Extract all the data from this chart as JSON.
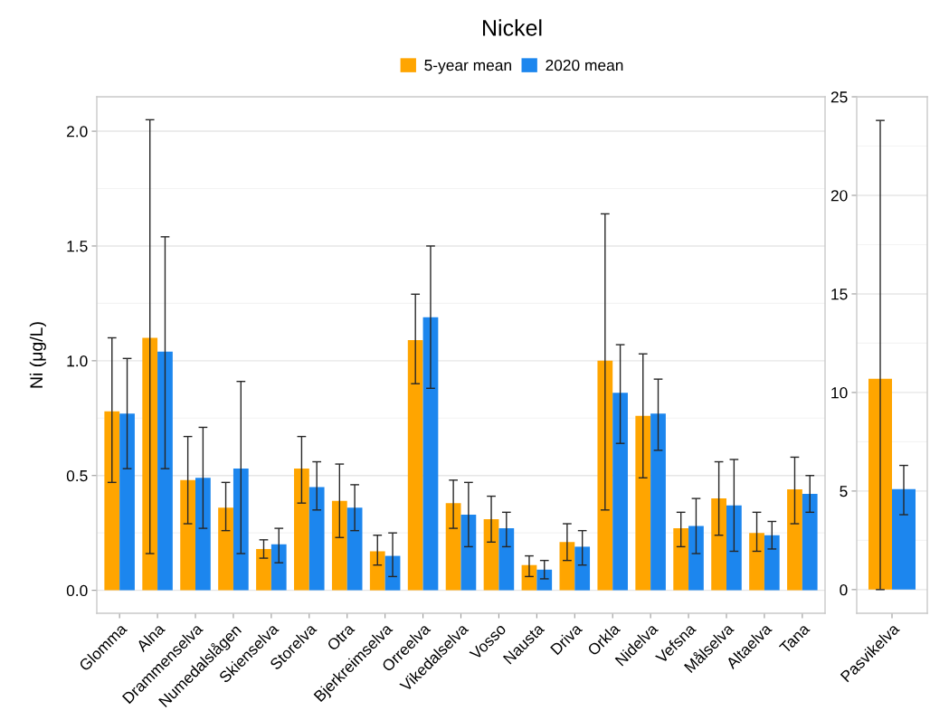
{
  "chart_data": [
    {
      "type": "bar",
      "title": "Nickel",
      "ylabel": "Ni (μg/L)",
      "legend": "top",
      "grid": "y",
      "categories": [
        "Glomma",
        "Alna",
        "Drammenselva",
        "Numedalslågen",
        "Skienselva",
        "Storelva",
        "Otra",
        "Bjerkreimselva",
        "Orreelva",
        "Vikedalselva",
        "Vosso",
        "Nausta",
        "Driva",
        "Orkla",
        "Nidelva",
        "Vefsna",
        "Målselva",
        "Altaelva",
        "Tana"
      ],
      "series": [
        {
          "name": "5-year mean",
          "color": "#ffa500",
          "values": [
            0.78,
            1.1,
            0.48,
            0.36,
            0.18,
            0.53,
            0.39,
            0.17,
            1.09,
            0.38,
            0.31,
            0.11,
            0.21,
            1.0,
            0.76,
            0.27,
            0.4,
            0.25,
            0.44
          ],
          "errors": [
            [
              0.47,
              1.1
            ],
            [
              0.16,
              2.05
            ],
            [
              0.29,
              0.67
            ],
            [
              0.26,
              0.47
            ],
            [
              0.14,
              0.22
            ],
            [
              0.38,
              0.67
            ],
            [
              0.23,
              0.55
            ],
            [
              0.11,
              0.24
            ],
            [
              0.9,
              1.29
            ],
            [
              0.27,
              0.48
            ],
            [
              0.21,
              0.41
            ],
            [
              0.06,
              0.15
            ],
            [
              0.13,
              0.29
            ],
            [
              0.35,
              1.64
            ],
            [
              0.49,
              1.03
            ],
            [
              0.19,
              0.34
            ],
            [
              0.24,
              0.56
            ],
            [
              0.17,
              0.34
            ],
            [
              0.29,
              0.58
            ]
          ]
        },
        {
          "name": "2020 mean",
          "color": "#1c86ee",
          "values": [
            0.77,
            1.04,
            0.49,
            0.53,
            0.2,
            0.45,
            0.36,
            0.15,
            1.19,
            0.33,
            0.27,
            0.09,
            0.19,
            0.86,
            0.77,
            0.28,
            0.37,
            0.24,
            0.42
          ],
          "errors": [
            [
              0.53,
              1.01
            ],
            [
              0.53,
              1.54
            ],
            [
              0.27,
              0.71
            ],
            [
              0.16,
              0.91
            ],
            [
              0.12,
              0.27
            ],
            [
              0.35,
              0.56
            ],
            [
              0.26,
              0.46
            ],
            [
              0.06,
              0.25
            ],
            [
              0.88,
              1.5
            ],
            [
              0.19,
              0.47
            ],
            [
              0.19,
              0.34
            ],
            [
              0.05,
              0.13
            ],
            [
              0.11,
              0.26
            ],
            [
              0.64,
              1.07
            ],
            [
              0.61,
              0.92
            ],
            [
              0.16,
              0.4
            ],
            [
              0.17,
              0.57
            ],
            [
              0.18,
              0.3
            ],
            [
              0.34,
              0.5
            ]
          ]
        }
      ],
      "ylim": [
        -0.1,
        2.15
      ],
      "yticks": [
        {
          "value": 0,
          "label": "0.0"
        },
        0.5,
        {
          "value": 1,
          "label": "1.0"
        },
        1.5,
        {
          "value": 2,
          "label": "2.0"
        }
      ]
    },
    {
      "type": "bar",
      "grid": "y",
      "categories": [
        "Pasvikelva"
      ],
      "series": [
        {
          "color": "#ffa500",
          "values": [
            10.7
          ],
          "errors": [
            [
              0,
              23.8
            ]
          ]
        },
        {
          "color": "#1c86ee",
          "values": [
            5.1
          ],
          "errors": [
            [
              3.8,
              6.3
            ]
          ]
        }
      ],
      "ylim": [
        -1.2,
        25
      ],
      "yticks": [
        0,
        5,
        10,
        15,
        20,
        25
      ]
    }
  ]
}
